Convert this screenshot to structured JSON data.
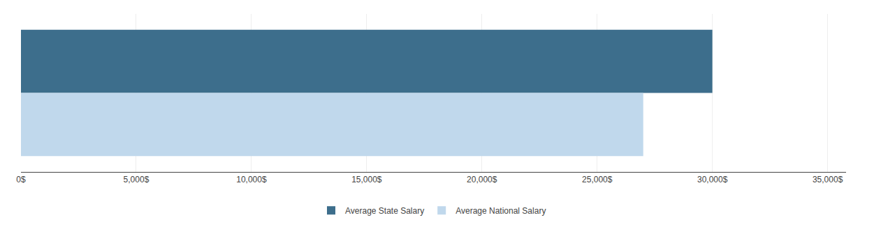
{
  "chart_data": {
    "type": "bar",
    "orientation": "horizontal",
    "categories": [
      null
    ],
    "series": [
      {
        "name": "Average State Salary",
        "color": "#3d6e8c",
        "values": [
          30000
        ]
      },
      {
        "name": "Average National Salary",
        "color": "#c0d8ec",
        "values": [
          27000
        ]
      }
    ],
    "xlim": [
      0,
      35800
    ],
    "xticks": [
      {
        "value": 0,
        "label": "0$"
      },
      {
        "value": 5000,
        "label": "5,000$"
      },
      {
        "value": 10000,
        "label": "10,000$"
      },
      {
        "value": 15000,
        "label": "15,000$"
      },
      {
        "value": 20000,
        "label": "20,000$"
      },
      {
        "value": 25000,
        "label": "25,000$"
      },
      {
        "value": 30000,
        "label": "30,000$"
      },
      {
        "value": 35000,
        "label": "35,000$"
      }
    ],
    "grid": true,
    "legend": "bottom",
    "tick_labels": "x"
  }
}
